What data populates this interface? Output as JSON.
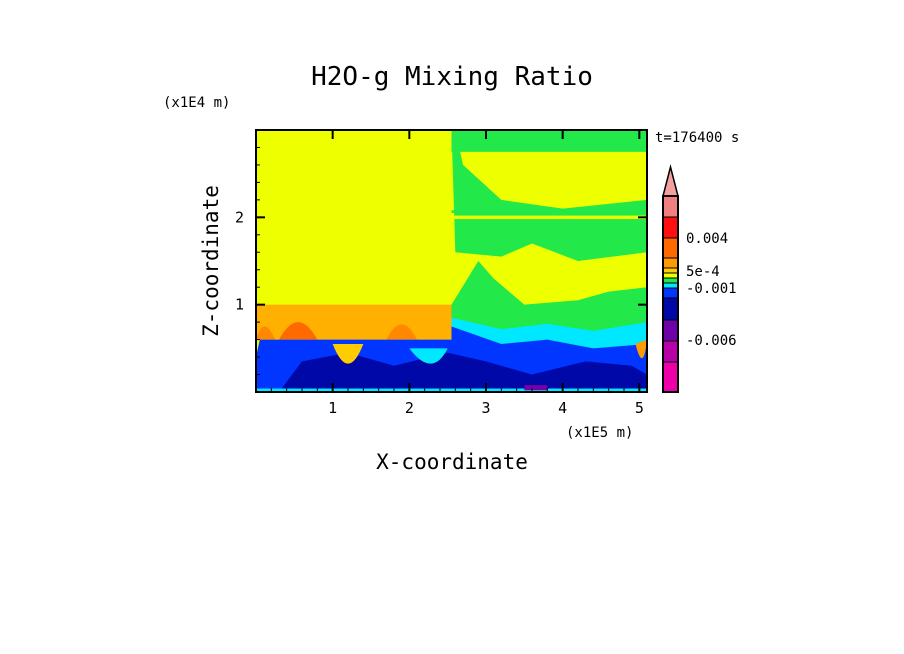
{
  "chart_data": {
    "type": "heatmap",
    "title": "H2O-g Mixing Ratio",
    "xlabel": "X-coordinate",
    "ylabel": "Z-coordinate",
    "x_unit": "(x1E5 m)",
    "y_unit": "(x1E4 m)",
    "time_label": "t=176400 s",
    "xlim": [
      0,
      5.1
    ],
    "ylim": [
      0,
      3.0
    ],
    "xticks": [
      1,
      2,
      3,
      4,
      5
    ],
    "xtick_labels": [
      "1",
      "2",
      "3",
      "4",
      "5"
    ],
    "yticks": [
      1,
      2
    ],
    "ytick_labels": [
      "1",
      "2"
    ],
    "colorbar": {
      "extend": "max",
      "extend_color": "#f4a0a0",
      "levels_top_to_bottom": [
        {
          "color": "#f08080"
        },
        {
          "color": "#ff1010"
        },
        {
          "color": "#ff6a00"
        },
        {
          "color": "#ff9a00"
        },
        {
          "color": "#ffcc00"
        },
        {
          "color": "#eeff00"
        },
        {
          "color": "#22e84a"
        },
        {
          "color": "#00e8ff"
        },
        {
          "color": "#0036ff"
        },
        {
          "color": "#0008a8"
        },
        {
          "color": "#7000a8"
        },
        {
          "color": "#b800a8"
        },
        {
          "color": "#ee00a8"
        }
      ],
      "labels": [
        "0.004",
        "5e-4",
        "-0.001",
        "-0.006"
      ]
    }
  }
}
